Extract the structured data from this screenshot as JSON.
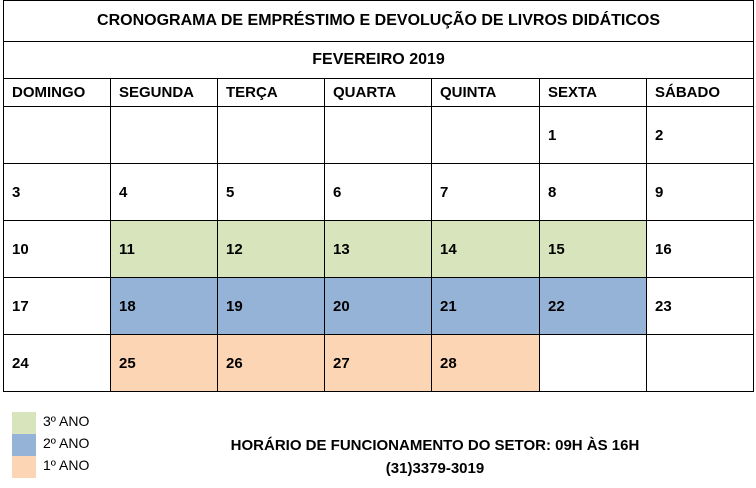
{
  "document": {
    "title": "CRONOGRAMA DE EMPRÉSTIMO E DEVOLUÇÃO DE LIVROS DIDÁTICOS",
    "month": "FEVEREIRO 2019",
    "weekdays": [
      "DOMINGO",
      "SEGUNDA",
      "TERÇA",
      "QUARTA",
      "QUINTA",
      "SEXTA",
      "SÁBADO"
    ],
    "weeks": [
      [
        "",
        "",
        "",
        "",
        "",
        "1",
        "2"
      ],
      [
        "3",
        "4",
        "5",
        "6",
        "7",
        "8",
        "9"
      ],
      [
        "10",
        "11",
        "12",
        "13",
        "14",
        "15",
        "16"
      ],
      [
        "17",
        "18",
        "19",
        "20",
        "21",
        "22",
        "23"
      ],
      [
        "24",
        "25",
        "26",
        "27",
        "28",
        "",
        ""
      ]
    ],
    "highlights": [
      [
        null,
        null,
        null,
        null,
        null,
        null,
        null
      ],
      [
        null,
        null,
        null,
        null,
        null,
        null,
        null
      ],
      [
        null,
        "3ano",
        "3ano",
        "3ano",
        "3ano",
        "3ano",
        null
      ],
      [
        null,
        "2ano",
        "2ano",
        "2ano",
        "2ano",
        "2ano",
        null
      ],
      [
        null,
        "1ano",
        "1ano",
        "1ano",
        "1ano",
        null,
        null
      ]
    ],
    "colors": {
      "3ano": "#d8e4bc",
      "2ano": "#95b3d7",
      "1ano": "#fcd5b4"
    }
  },
  "legend": [
    {
      "label": "3º ANO",
      "key": "3ano"
    },
    {
      "label": "2º ANO",
      "key": "2ano"
    },
    {
      "label": "1º ANO",
      "key": "1ano"
    }
  ],
  "footer": {
    "hours": "HORÁRIO DE FUNCIONAMENTO DO SETOR: 09H ÀS 16H",
    "phone": "(31)3379-3019"
  }
}
